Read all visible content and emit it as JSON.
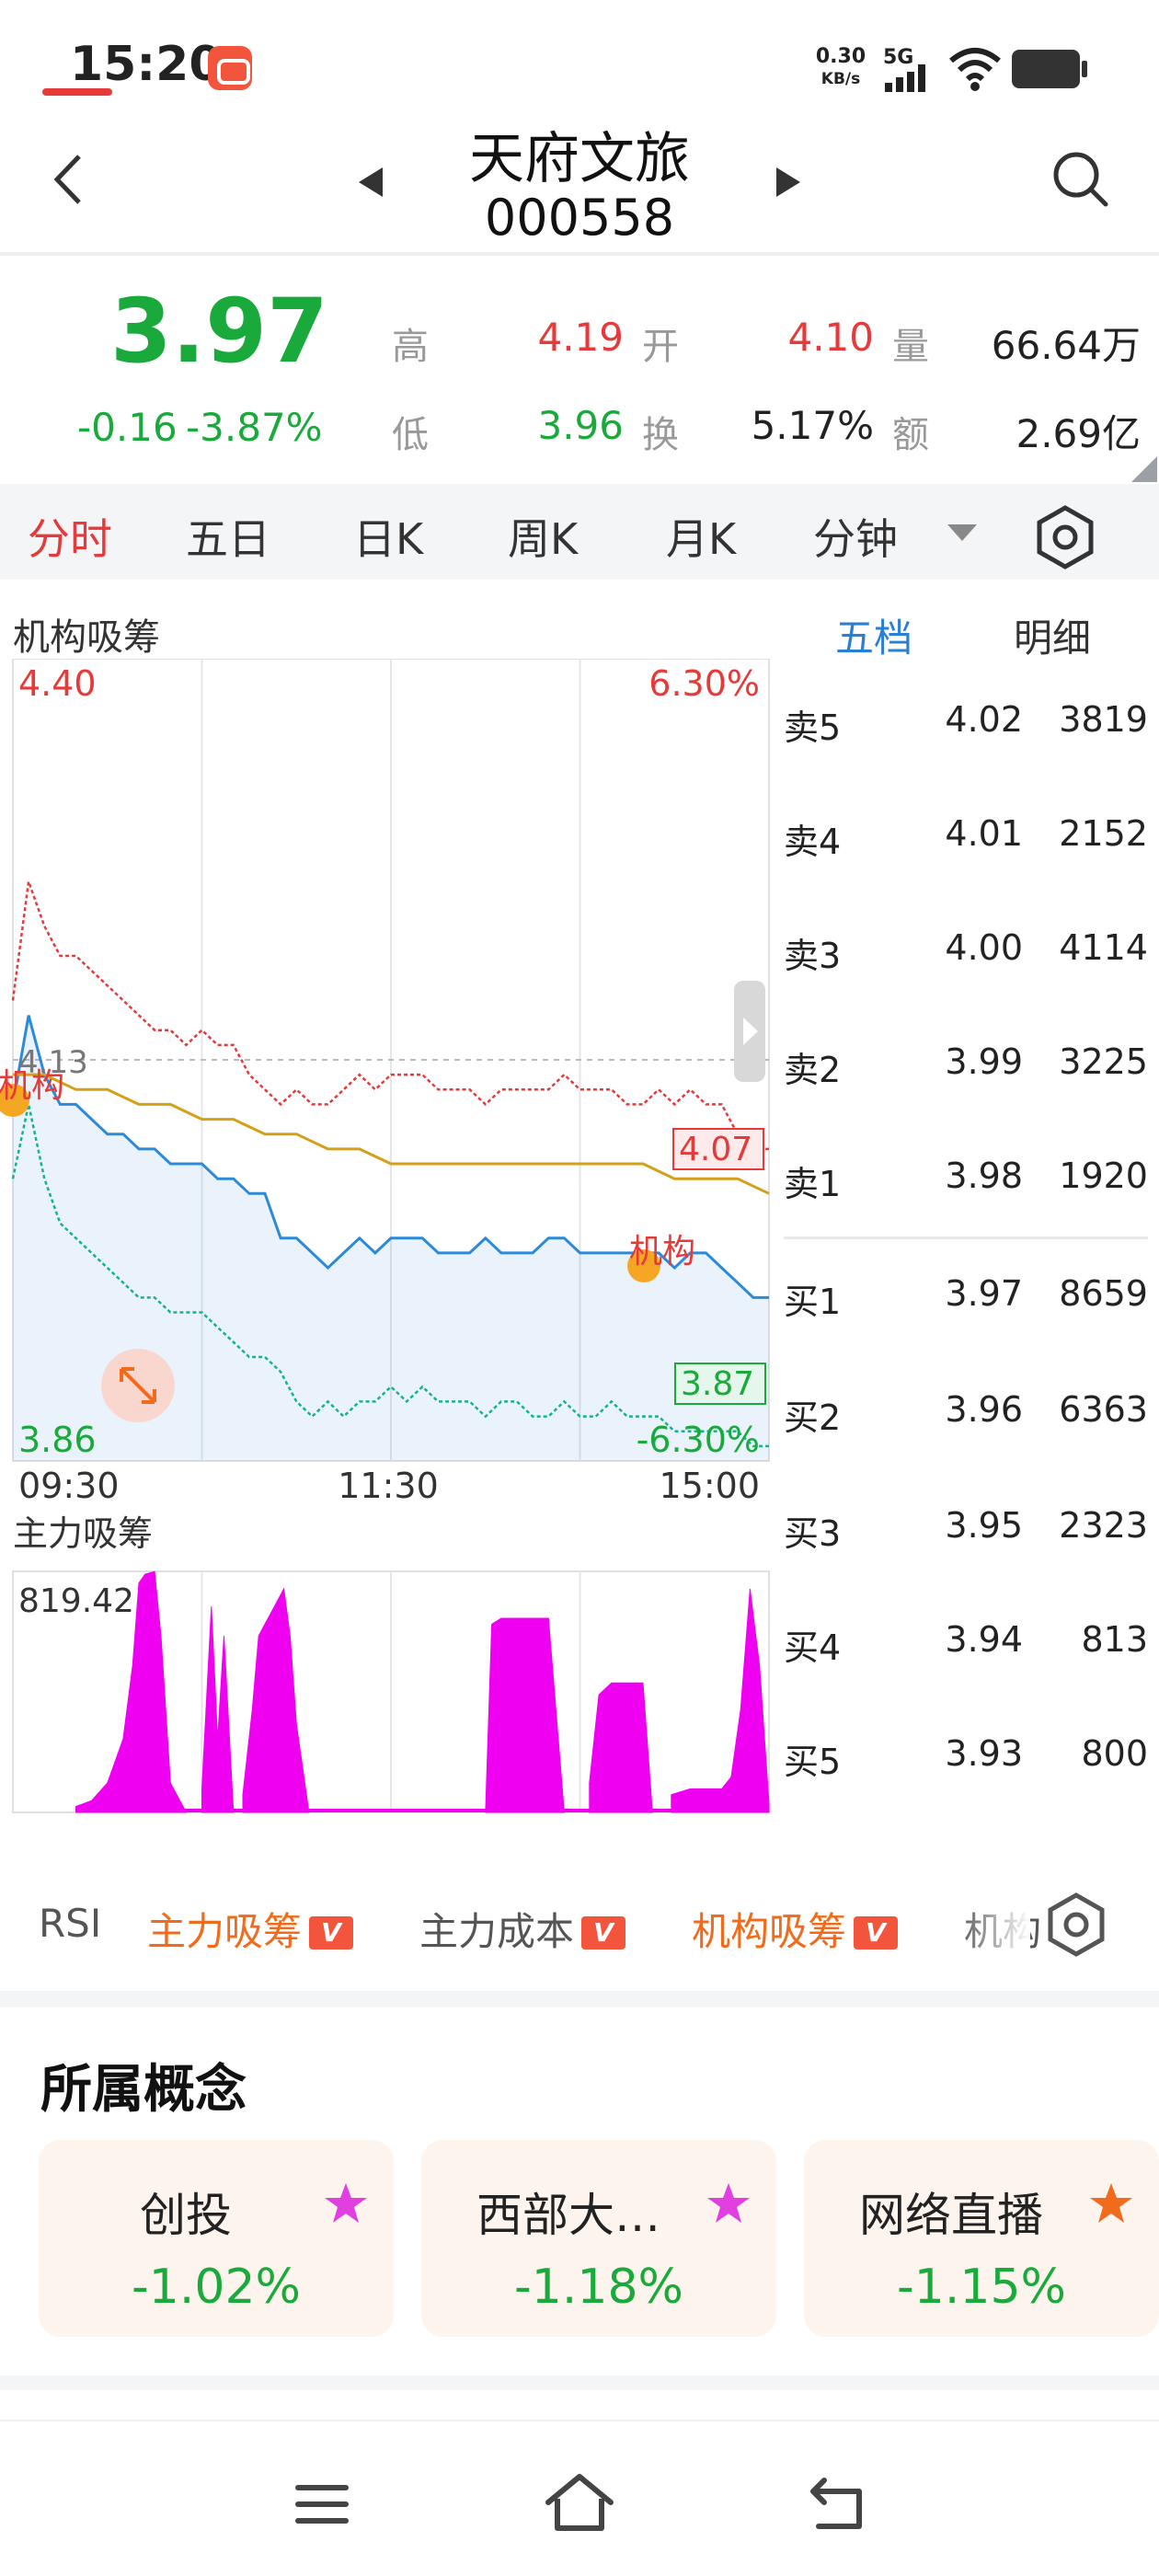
{
  "status_bar": {
    "time": "15:20",
    "net_speed": "0.30",
    "net_speed_unit": "KB/s",
    "network": "5G",
    "icons": [
      "app-notification-icon",
      "signal-icon",
      "wifi-icon",
      "battery-icon"
    ]
  },
  "header": {
    "stock_name": "天府文旅",
    "stock_code": "000558",
    "icons": [
      "back-icon",
      "prev-stock-icon",
      "next-stock-icon",
      "search-icon"
    ]
  },
  "quote": {
    "price": "3.97",
    "change": "-0.16",
    "change_pct": "-3.87%",
    "high_label": "高",
    "high": "4.19",
    "open_label": "开",
    "open": "4.10",
    "volume_label": "量",
    "volume": "66.64万",
    "low_label": "低",
    "low": "3.96",
    "turnover_label": "换",
    "turnover": "5.17%",
    "amount_label": "额",
    "amount": "2.69亿"
  },
  "period_tabs": [
    "分时",
    "五日",
    "日K",
    "周K",
    "月K",
    "分钟"
  ],
  "active_tab": "分时",
  "chart_header": {
    "indicator_title": "机构吸筹",
    "tab_five": "五档",
    "tab_detail": "明细"
  },
  "order_book": {
    "asks": [
      {
        "label": "卖5",
        "price": "4.02",
        "volume": "3819"
      },
      {
        "label": "卖4",
        "price": "4.01",
        "volume": "2152"
      },
      {
        "label": "卖3",
        "price": "4.00",
        "volume": "4114"
      },
      {
        "label": "卖2",
        "price": "3.99",
        "volume": "3225"
      },
      {
        "label": "卖1",
        "price": "3.98",
        "volume": "1920"
      }
    ],
    "bids": [
      {
        "label": "买1",
        "price": "3.97",
        "volume": "8659"
      },
      {
        "label": "买2",
        "price": "3.96",
        "volume": "6363"
      },
      {
        "label": "买3",
        "price": "3.95",
        "volume": "2323"
      },
      {
        "label": "买4",
        "price": "3.94",
        "volume": "813"
      },
      {
        "label": "买5",
        "price": "3.93",
        "volume": "800"
      }
    ]
  },
  "indicator_tabs": [
    {
      "label": "RSI",
      "badge": ""
    },
    {
      "label": "主力吸筹",
      "badge": "V"
    },
    {
      "label": "主力成本",
      "badge": "V"
    },
    {
      "label": "机构吸筹",
      "badge": "V"
    },
    {
      "label": "机构",
      "badge": ""
    }
  ],
  "concepts": {
    "title": "所属概念",
    "items": [
      {
        "name": "创投",
        "change": "-1.02%",
        "star_color": "#e23fe0"
      },
      {
        "name": "西部大…",
        "change": "-1.18%",
        "star_color": "#e23fe0"
      },
      {
        "name": "网络直播",
        "change": "-1.15%",
        "star_color": "#f26b1d"
      }
    ]
  },
  "colors": {
    "up": "#e63a3a",
    "down": "#1aaa3c",
    "price_line": "#2d8ad8",
    "avg_line": "#d4a017",
    "volume_bar": "#f000f0"
  },
  "chart_data": [
    {
      "type": "line",
      "title": "",
      "x_ticks": [
        "09:30",
        "11:30",
        "15:00"
      ],
      "y_left_ticks": [
        "4.40",
        "4.13",
        "3.86"
      ],
      "y_right_ticks": [
        "6.30%",
        "-6.30%"
      ],
      "ylim": [
        3.86,
        4.4
      ],
      "prev_close": 4.13,
      "grid": true,
      "series": [
        {
          "name": "",
          "color": "#2d8ad8",
          "x": [
            0,
            5,
            10,
            15,
            20,
            25,
            30,
            35,
            40,
            45,
            50,
            55,
            60,
            65,
            70,
            75,
            80,
            85,
            90,
            95,
            100,
            105,
            110,
            115,
            120,
            125,
            130,
            135,
            140,
            145,
            150,
            155,
            160,
            165,
            170,
            175,
            180,
            185,
            190,
            195,
            200,
            205,
            210,
            215,
            220,
            225,
            230,
            235,
            240
          ],
          "values": [
            4.1,
            4.16,
            4.12,
            4.1,
            4.1,
            4.09,
            4.08,
            4.08,
            4.07,
            4.07,
            4.06,
            4.06,
            4.06,
            4.05,
            4.05,
            4.04,
            4.04,
            4.01,
            4.01,
            4.0,
            3.99,
            4.0,
            4.01,
            4.0,
            4.01,
            4.01,
            4.01,
            4.0,
            4.0,
            4.0,
            4.01,
            4.0,
            4.0,
            4.0,
            4.01,
            4.01,
            4.0,
            4.0,
            4.0,
            4.0,
            4.0,
            4.0,
            3.99,
            4.0,
            4.0,
            3.99,
            3.98,
            3.97,
            3.97
          ]
        },
        {
          "name": "",
          "color": "#d4a017",
          "x": [
            0,
            10,
            20,
            30,
            40,
            50,
            60,
            70,
            80,
            90,
            100,
            110,
            120,
            130,
            140,
            150,
            160,
            170,
            180,
            190,
            200,
            210,
            220,
            230,
            240
          ],
          "values": [
            4.12,
            4.12,
            4.11,
            4.11,
            4.1,
            4.1,
            4.09,
            4.09,
            4.08,
            4.08,
            4.07,
            4.07,
            4.06,
            4.06,
            4.06,
            4.06,
            4.06,
            4.06,
            4.06,
            4.06,
            4.06,
            4.05,
            4.05,
            4.05,
            4.04
          ]
        },
        {
          "name": "",
          "color": "#e63a3a",
          "dashed": true,
          "x": [
            0,
            5,
            10,
            15,
            20,
            25,
            30,
            35,
            40,
            45,
            50,
            55,
            60,
            65,
            70,
            75,
            80,
            85,
            90,
            95,
            100,
            105,
            110,
            115,
            120,
            125,
            130,
            135,
            140,
            145,
            150,
            155,
            160,
            165,
            170,
            175,
            180,
            185,
            190,
            195,
            200,
            205,
            210,
            215,
            220,
            225,
            230,
            235,
            240
          ],
          "values": [
            4.17,
            4.25,
            4.22,
            4.2,
            4.2,
            4.19,
            4.18,
            4.17,
            4.16,
            4.15,
            4.15,
            4.14,
            4.15,
            4.14,
            4.14,
            4.12,
            4.11,
            4.1,
            4.11,
            4.1,
            4.1,
            4.11,
            4.12,
            4.11,
            4.12,
            4.12,
            4.12,
            4.11,
            4.11,
            4.11,
            4.1,
            4.11,
            4.11,
            4.11,
            4.11,
            4.12,
            4.11,
            4.11,
            4.11,
            4.1,
            4.1,
            4.11,
            4.1,
            4.11,
            4.1,
            4.1,
            4.08,
            4.07,
            4.07
          ]
        },
        {
          "name": "",
          "color": "#17b28a",
          "dashed": true,
          "x": [
            0,
            5,
            10,
            15,
            20,
            25,
            30,
            35,
            40,
            45,
            50,
            55,
            60,
            65,
            70,
            75,
            80,
            85,
            90,
            95,
            100,
            105,
            110,
            115,
            120,
            125,
            130,
            135,
            140,
            145,
            150,
            155,
            160,
            165,
            170,
            175,
            180,
            185,
            190,
            195,
            200,
            205,
            210,
            215,
            220,
            225,
            230,
            235,
            240
          ],
          "values": [
            4.05,
            4.1,
            4.05,
            4.02,
            4.01,
            4.0,
            3.99,
            3.98,
            3.97,
            3.97,
            3.96,
            3.96,
            3.96,
            3.95,
            3.94,
            3.93,
            3.93,
            3.92,
            3.9,
            3.89,
            3.9,
            3.89,
            3.9,
            3.9,
            3.91,
            3.9,
            3.91,
            3.9,
            3.9,
            3.9,
            3.89,
            3.9,
            3.9,
            3.89,
            3.89,
            3.9,
            3.89,
            3.89,
            3.9,
            3.89,
            3.89,
            3.89,
            3.88,
            3.88,
            3.88,
            3.88,
            3.88,
            3.87,
            3.87
          ]
        }
      ],
      "annotations": [
        {
          "text": "4.13"
        },
        {
          "text": "机构"
        },
        {
          "text": "机构"
        },
        {
          "text": "4.07"
        },
        {
          "text": "3.87"
        }
      ]
    },
    {
      "type": "area",
      "title": "主力吸筹",
      "y_max_label": "819.42",
      "ylim": [
        0,
        819.42
      ],
      "color": "#f000f0",
      "segments": [
        {
          "x": [
            20,
            25,
            30,
            35,
            38,
            40,
            42,
            45,
            47,
            50,
            55
          ],
          "values": [
            20,
            40,
            100,
            250,
            500,
            780,
            810,
            819,
            600,
            100,
            0
          ]
        },
        {
          "x": [
            60,
            63,
            65,
            67,
            70
          ],
          "values": [
            80,
            700,
            250,
            600,
            0
          ]
        },
        {
          "x": [
            73,
            76,
            78,
            80,
            83,
            86,
            88,
            90,
            94
          ],
          "values": [
            60,
            350,
            600,
            640,
            700,
            760,
            600,
            300,
            0
          ]
        },
        {
          "x": [
            150,
            152,
            155,
            160,
            165,
            170,
            175
          ],
          "values": [
            0,
            640,
            660,
            660,
            660,
            660,
            0
          ]
        },
        {
          "x": [
            183,
            186,
            190,
            195,
            200,
            203
          ],
          "values": [
            100,
            400,
            440,
            440,
            440,
            0
          ]
        },
        {
          "x": [
            209,
            215,
            220,
            225,
            228,
            231,
            234,
            237,
            240
          ],
          "values": [
            60,
            80,
            80,
            80,
            120,
            350,
            760,
            500,
            30
          ]
        }
      ]
    }
  ]
}
